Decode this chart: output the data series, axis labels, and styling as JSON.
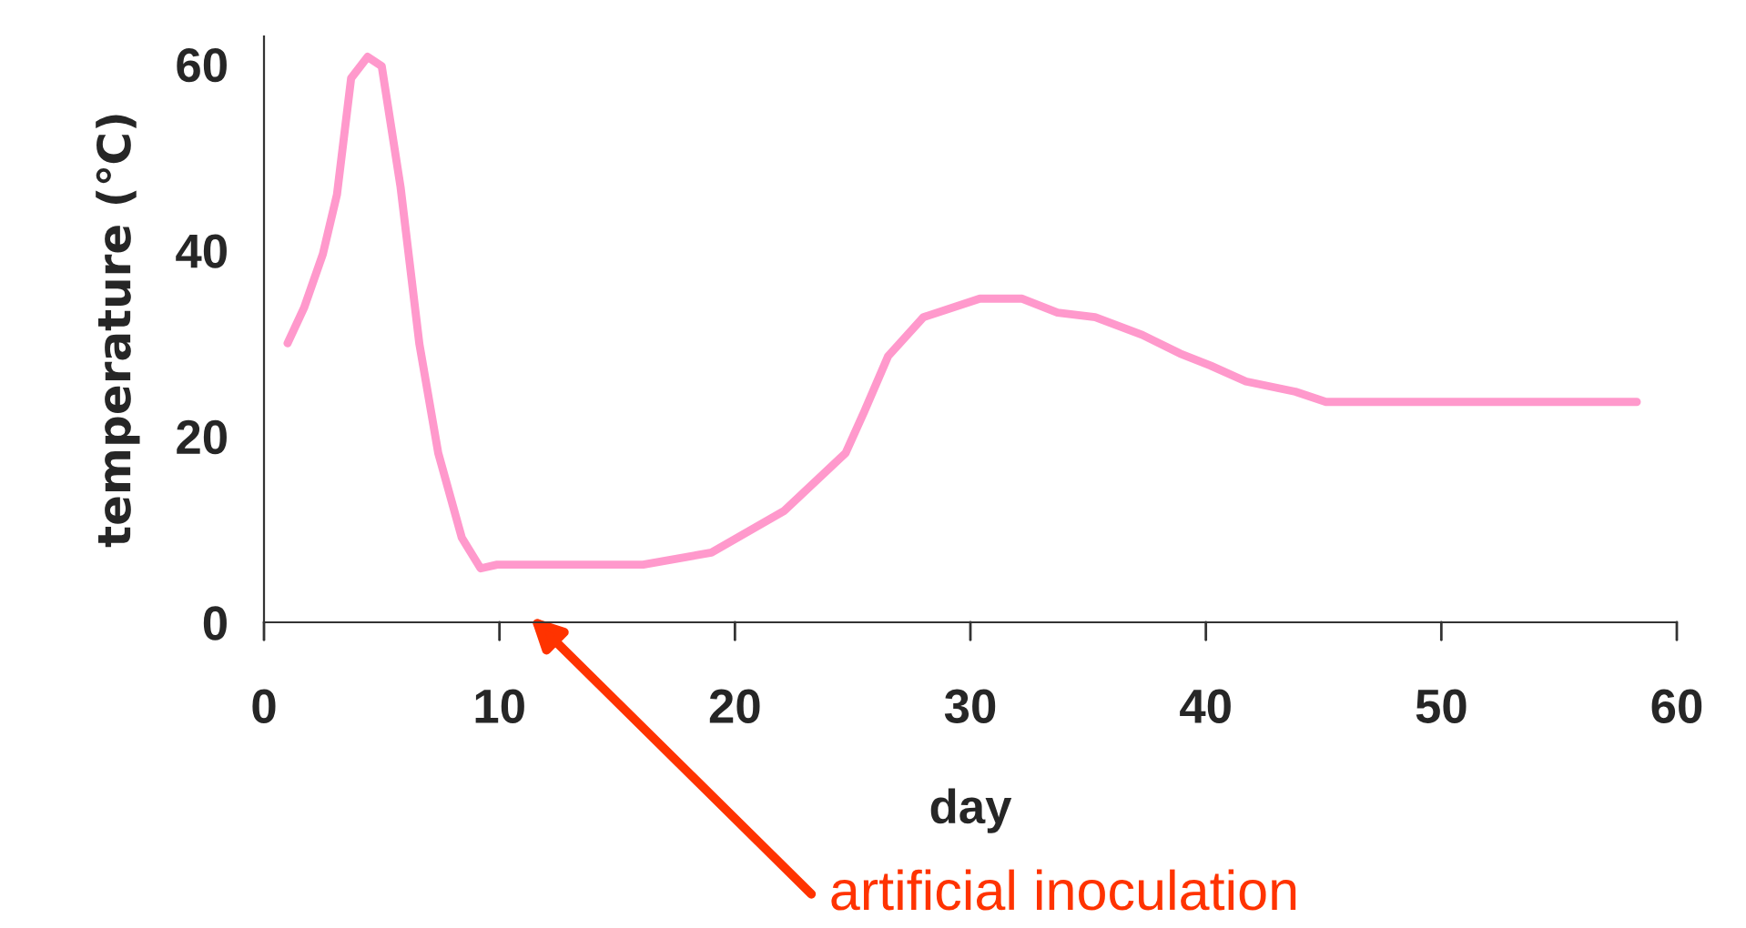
{
  "chart_data": {
    "type": "line",
    "xlabel": "day",
    "ylabel": "temperature (℃)",
    "xlim": [
      0,
      60
    ],
    "ylim": [
      0,
      63
    ],
    "xticks": [
      0,
      10,
      20,
      30,
      40,
      50,
      60
    ],
    "yticks": [
      0,
      20,
      40,
      60
    ],
    "grid": false,
    "legend": false,
    "marker": "none",
    "line_style": "solid",
    "annotations": [
      "artificial inoculation"
    ],
    "series": [
      {
        "color": "#ff99cc",
        "x": [
          1,
          1.7,
          2.5,
          3.1,
          3.7,
          4.4,
          5.0,
          5.8,
          6.6,
          7.4,
          8.4,
          9.2,
          9.9,
          16.1,
          19,
          22.1,
          24.7,
          25.5,
          26.5,
          28,
          30.4,
          32.2,
          33.7,
          35.3,
          37.3,
          38.9,
          40.2,
          41.7,
          43.8,
          45.1,
          58.3
        ],
        "values": [
          30,
          33.8,
          39.6,
          46,
          58.5,
          60.8,
          59.8,
          46.8,
          29.9,
          18.2,
          9.1,
          5.8,
          6.2,
          6.2,
          7.5,
          12,
          18.2,
          22.7,
          28.6,
          32.8,
          34.8,
          34.8,
          33.3,
          32.8,
          30.9,
          28.9,
          27.6,
          25.9,
          24.8,
          23.7,
          23.7
        ]
      }
    ]
  }
}
